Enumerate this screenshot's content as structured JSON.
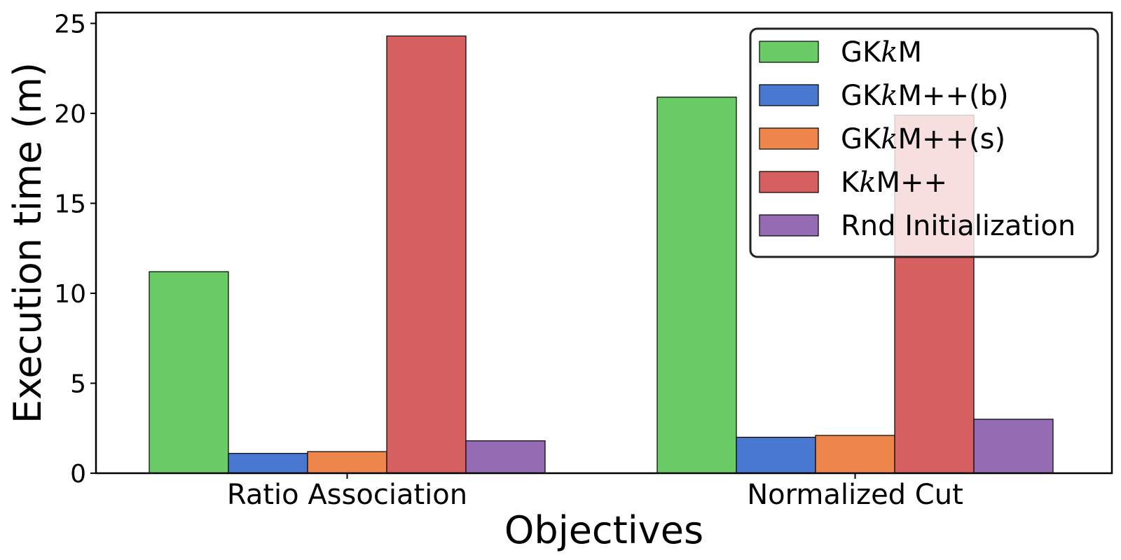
{
  "chart_data": {
    "type": "bar",
    "xlabel": "Objectives",
    "ylabel": "Execution time (m)",
    "categories": [
      "Ratio Association",
      "Normalized Cut"
    ],
    "ylim": [
      0,
      25.6
    ],
    "yticks": [
      "0",
      "5",
      "10",
      "15",
      "20",
      "25"
    ],
    "ytick_values": [
      0,
      5,
      10,
      15,
      20,
      25
    ],
    "grid": false,
    "legend_position": "top-right",
    "series": [
      {
        "name": "GKkM",
        "name_parts": [
          "GK",
          "k",
          "M"
        ],
        "color": "#6acc64",
        "values": [
          11.2,
          20.9
        ]
      },
      {
        "name": "GKkM++(b)",
        "name_parts": [
          "GK",
          "k",
          "M++(b)"
        ],
        "color": "#4878d0",
        "values": [
          1.1,
          2.0
        ]
      },
      {
        "name": "GKkM++(s)",
        "name_parts": [
          "GK",
          "k",
          "M++(s)"
        ],
        "color": "#ee854a",
        "values": [
          1.2,
          2.1
        ]
      },
      {
        "name": "KkM++",
        "name_parts": [
          "K",
          "k",
          "M++"
        ],
        "color": "#d65f5f",
        "values": [
          24.3,
          19.9
        ]
      },
      {
        "name": "Rnd Initialization",
        "name_parts": [
          "Rnd Initialization",
          "",
          ""
        ],
        "color": "#956cb4",
        "values": [
          1.8,
          3.0
        ]
      }
    ]
  }
}
